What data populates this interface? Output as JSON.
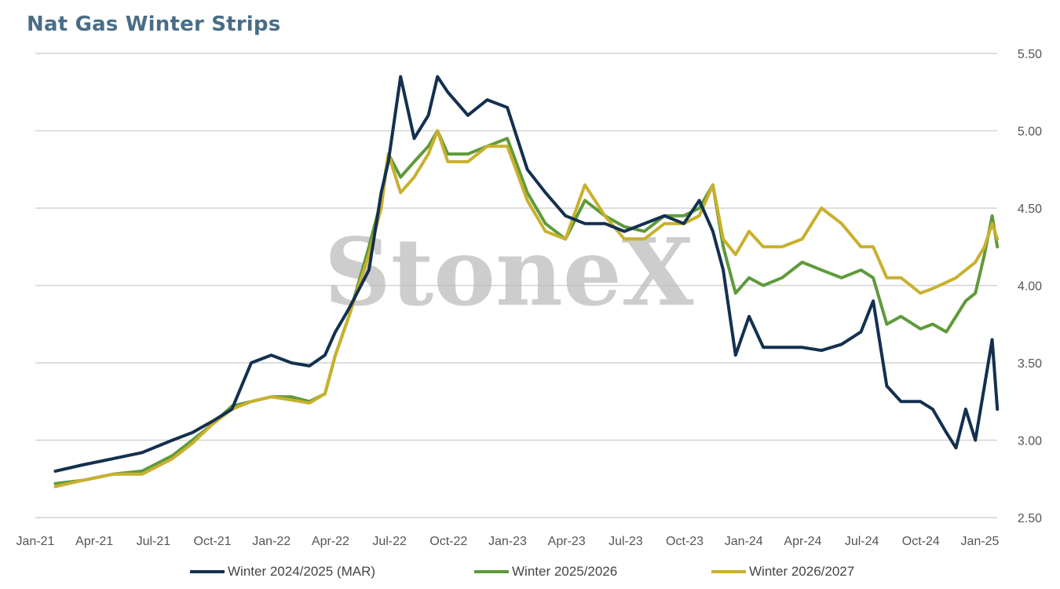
{
  "title": "Nat Gas Winter Strips",
  "watermark": "StoneX",
  "colors": {
    "title": "#4a6d87",
    "series": [
      "#13304f",
      "#5e9a3a",
      "#c9b02e"
    ],
    "grid": "#d4d4d4"
  },
  "chart_data": {
    "type": "line",
    "title": "Nat Gas Winter Strips",
    "xlabel": "",
    "ylabel": "",
    "x_ticks": [
      "Jan-21",
      "Apr-21",
      "Jul-21",
      "Oct-21",
      "Jan-22",
      "Apr-22",
      "Jul-22",
      "Oct-22",
      "Jan-23",
      "Apr-23",
      "Jul-23",
      "Oct-23",
      "Jan-24",
      "Apr-24",
      "Jul-24",
      "Oct-24",
      "Jan-25"
    ],
    "y_ticks": [
      "2.50",
      "3.00",
      "3.50",
      "4.00",
      "4.50",
      "5.00",
      "5.50"
    ],
    "ylim": [
      2.5,
      5.5
    ],
    "axis_position_y": "right",
    "grid": true,
    "legend_position": "bottom",
    "x": [
      "2021-02-01",
      "2021-03-15",
      "2021-05-01",
      "2021-06-15",
      "2021-08-01",
      "2021-09-01",
      "2021-10-01",
      "2021-11-01",
      "2021-12-01",
      "2022-01-01",
      "2022-02-01",
      "2022-03-01",
      "2022-03-25",
      "2022-04-10",
      "2022-05-01",
      "2022-06-01",
      "2022-06-20",
      "2022-07-01",
      "2022-07-20",
      "2022-08-10",
      "2022-09-01",
      "2022-09-15",
      "2022-10-01",
      "2022-11-01",
      "2022-12-01",
      "2023-01-01",
      "2023-02-01",
      "2023-03-01",
      "2023-04-01",
      "2023-05-01",
      "2023-06-01",
      "2023-07-01",
      "2023-08-01",
      "2023-09-01",
      "2023-10-01",
      "2023-10-25",
      "2023-11-15",
      "2023-12-01",
      "2023-12-20",
      "2024-01-10",
      "2024-02-01",
      "2024-03-01",
      "2024-04-01",
      "2024-05-01",
      "2024-06-01",
      "2024-07-01",
      "2024-07-20",
      "2024-08-10",
      "2024-09-01",
      "2024-10-01",
      "2024-10-20",
      "2024-11-10",
      "2024-11-25",
      "2024-12-10",
      "2024-12-25",
      "2025-01-08",
      "2025-01-20",
      "2025-01-28"
    ],
    "series": [
      {
        "name": "Winter 2024/2025 (MAR)",
        "values": [
          2.8,
          2.84,
          2.88,
          2.92,
          3.0,
          3.05,
          3.12,
          3.2,
          3.5,
          3.55,
          3.5,
          3.48,
          3.55,
          3.7,
          3.85,
          4.1,
          4.6,
          4.8,
          5.35,
          4.95,
          5.1,
          5.35,
          5.25,
          5.1,
          5.2,
          5.15,
          4.75,
          4.6,
          4.45,
          4.4,
          4.4,
          4.35,
          4.4,
          4.45,
          4.4,
          4.55,
          4.35,
          4.1,
          3.55,
          3.8,
          3.6,
          3.6,
          3.6,
          3.58,
          3.62,
          3.7,
          3.9,
          3.35,
          3.25,
          3.25,
          3.2,
          3.05,
          2.95,
          3.2,
          3.0,
          3.35,
          3.65,
          3.2
        ]
      },
      {
        "name": "Winter 2025/2026",
        "values": [
          2.72,
          2.74,
          2.78,
          2.8,
          2.9,
          3.0,
          3.1,
          3.22,
          3.25,
          3.28,
          3.28,
          3.25,
          3.3,
          3.55,
          3.8,
          4.25,
          4.55,
          4.85,
          4.7,
          4.8,
          4.9,
          5.0,
          4.85,
          4.85,
          4.9,
          4.95,
          4.6,
          4.4,
          4.3,
          4.55,
          4.45,
          4.38,
          4.35,
          4.45,
          4.45,
          4.5,
          4.65,
          4.25,
          3.95,
          4.05,
          4.0,
          4.05,
          4.15,
          4.1,
          4.05,
          4.1,
          4.05,
          3.75,
          3.8,
          3.72,
          3.75,
          3.7,
          3.8,
          3.9,
          3.95,
          4.2,
          4.45,
          4.25
        ]
      },
      {
        "name": "Winter 2026/2027",
        "values": [
          2.7,
          2.74,
          2.78,
          2.78,
          2.88,
          2.98,
          3.1,
          3.2,
          3.25,
          3.28,
          3.26,
          3.24,
          3.3,
          3.55,
          3.8,
          4.2,
          4.5,
          4.85,
          4.6,
          4.7,
          4.85,
          5.0,
          4.8,
          4.8,
          4.9,
          4.9,
          4.55,
          4.35,
          4.3,
          4.65,
          4.45,
          4.3,
          4.3,
          4.4,
          4.4,
          4.45,
          4.65,
          4.3,
          4.2,
          4.35,
          4.25,
          4.25,
          4.3,
          4.5,
          4.4,
          4.25,
          4.25,
          4.05,
          4.05,
          3.95,
          3.98,
          4.02,
          4.05,
          4.1,
          4.15,
          4.25,
          4.4,
          4.3
        ]
      }
    ]
  }
}
